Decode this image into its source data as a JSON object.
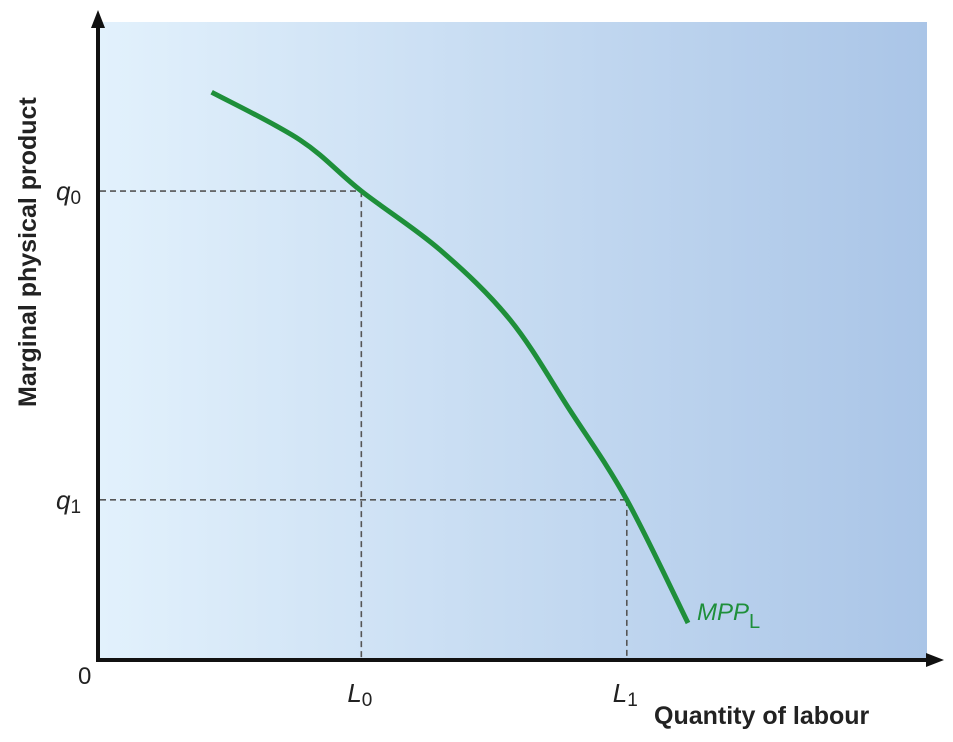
{
  "chart_data": {
    "type": "line",
    "title": "",
    "xlabel": "Quantity of labour",
    "ylabel": "Marginal physical product",
    "origin_label": "0",
    "xlim": [
      0,
      10
    ],
    "ylim": [
      0,
      10
    ],
    "grid": false,
    "series": [
      {
        "name": "MPP",
        "subscript": "L",
        "color": "#1e8f3a",
        "x": [
          1.35,
          2.42,
          3.16,
          4.11,
          4.96,
          5.68,
          6.37,
          7.11
        ],
        "y": [
          8.9,
          8.15,
          7.35,
          6.43,
          5.33,
          3.92,
          2.51,
          0.58
        ]
      }
    ],
    "reference_points": [
      {
        "x_label": "L",
        "x_sub": "0",
        "y_label": "q",
        "y_sub": "0",
        "x": 3.16,
        "y": 7.35
      },
      {
        "x_label": "L",
        "x_sub": "1",
        "y_label": "q",
        "y_sub": "1",
        "x": 6.37,
        "y": 2.51
      }
    ],
    "background_colors": [
      "#e2f1fc",
      "#aac5e7"
    ]
  }
}
